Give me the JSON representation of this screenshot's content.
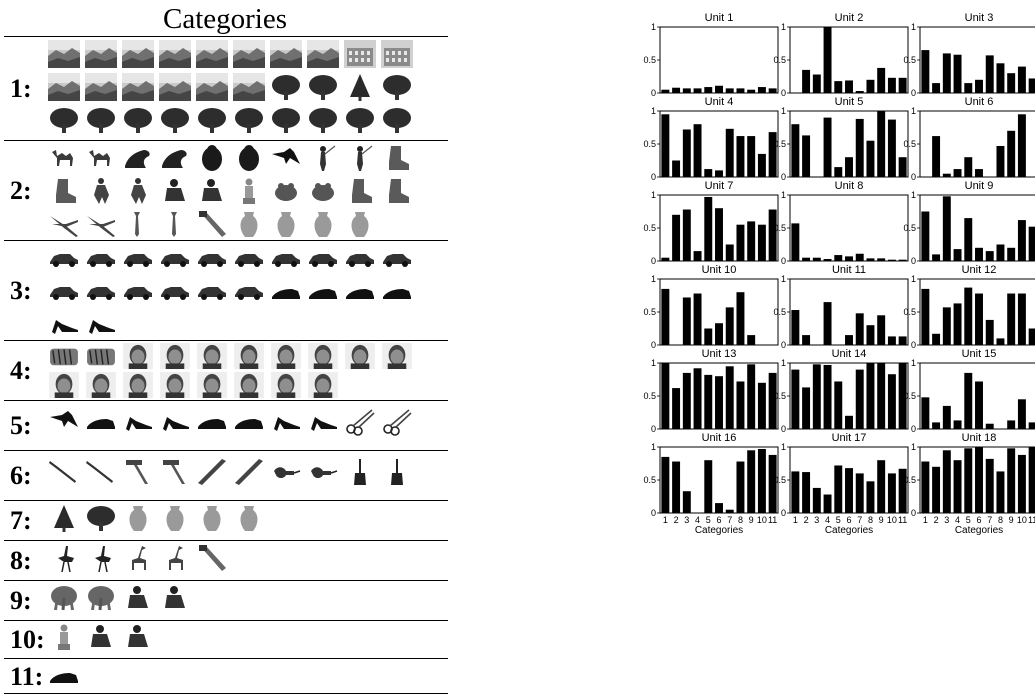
{
  "left_panel": {
    "title": "Categories",
    "categories": [
      {
        "label": "1:",
        "rows": [
          [
            "landscape",
            "landscape",
            "landscape",
            "landscape",
            "landscape",
            "landscape",
            "landscape",
            "landscape",
            "building",
            "building"
          ],
          [
            "landscape",
            "landscape",
            "landscape",
            "landscape",
            "landscape",
            "landscape",
            "tree",
            "tree",
            "conifer",
            "tree"
          ],
          [
            "tree",
            "tree",
            "tree",
            "tree",
            "tree",
            "tree",
            "tree",
            "tree",
            "tree",
            "tree"
          ]
        ]
      },
      {
        "label": "2:",
        "rows": [
          [
            "camel",
            "camel",
            "seal",
            "seal",
            "gorilla",
            "gorilla",
            "bird",
            "golfer",
            "golfer",
            "boot"
          ],
          [
            "boot",
            "dancer",
            "dancer",
            "person",
            "person",
            "statue",
            "frog",
            "frog",
            "boot",
            "boot"
          ],
          [
            "pliers",
            "pliers",
            "wrench",
            "wrench",
            "saw",
            "vase",
            "vase",
            "vase",
            "vase"
          ]
        ]
      },
      {
        "label": "3:",
        "rows": [
          [
            "car",
            "car",
            "car",
            "car",
            "car",
            "car",
            "car",
            "car",
            "car",
            "car"
          ],
          [
            "car",
            "car",
            "car",
            "car",
            "car",
            "car",
            "shoe",
            "shoe",
            "shoe",
            "shoe"
          ],
          [
            "heel",
            "heel"
          ]
        ]
      },
      {
        "label": "4:",
        "rows": [
          [
            "tiger",
            "tiger",
            "face",
            "face",
            "face",
            "face",
            "face",
            "face",
            "face",
            "face"
          ],
          [
            "face",
            "face",
            "face",
            "face",
            "face",
            "face",
            "face",
            "face"
          ]
        ]
      },
      {
        "label": "5:",
        "rows": [
          [
            "bird",
            "shoe",
            "heel",
            "heel",
            "shoe",
            "shoe",
            "heel",
            "heel",
            "scissors",
            "scissors"
          ]
        ]
      },
      {
        "label": "6:",
        "rows": [
          [
            "screwdriver",
            "screwdriver",
            "hammer",
            "hammer",
            "chisel",
            "chisel",
            "drill",
            "drill",
            "brush",
            "brush"
          ]
        ]
      },
      {
        "label": "7:",
        "rows": [
          [
            "conifer",
            "tree",
            "vase",
            "vase",
            "vase",
            "vase"
          ]
        ]
      },
      {
        "label": "8:",
        "rows": [
          [
            "ostrich",
            "ostrich",
            "giraffe",
            "giraffe",
            "saw"
          ]
        ]
      },
      {
        "label": "9:",
        "rows": [
          [
            "elephant",
            "elephant",
            "person",
            "person"
          ]
        ]
      },
      {
        "label": "10:",
        "rows": [
          [
            "statue",
            "person",
            "person"
          ]
        ]
      },
      {
        "label": "11:",
        "rows": [
          [
            "shoe"
          ]
        ]
      }
    ]
  },
  "chart_data": {
    "type": "bar",
    "xlabel": "Categories",
    "categories": [
      "1",
      "2",
      "3",
      "4",
      "5",
      "6",
      "7",
      "8",
      "9",
      "10",
      "11"
    ],
    "ylim": [
      0,
      1
    ],
    "yticks": [
      "0",
      "0.5",
      "1"
    ],
    "units": [
      {
        "name": "Unit 1",
        "values": [
          0.05,
          0.08,
          0.07,
          0.07,
          0.09,
          0.11,
          0.07,
          0.07,
          0.05,
          0.09,
          0.07
        ]
      },
      {
        "name": "Unit 2",
        "values": [
          0.0,
          0.35,
          0.28,
          1.0,
          0.18,
          0.19,
          0.03,
          0.2,
          0.38,
          0.23,
          0.23
        ]
      },
      {
        "name": "Unit 3",
        "values": [
          0.65,
          0.15,
          0.6,
          0.58,
          0.15,
          0.2,
          0.57,
          0.45,
          0.3,
          0.4,
          0.22
        ]
      },
      {
        "name": "Unit 4",
        "values": [
          0.95,
          0.25,
          0.72,
          0.8,
          0.12,
          0.1,
          0.73,
          0.62,
          0.62,
          0.35,
          0.68
        ]
      },
      {
        "name": "Unit 5",
        "values": [
          0.8,
          0.63,
          0.0,
          0.9,
          0.15,
          0.3,
          0.88,
          0.55,
          1.0,
          0.87,
          0.3
        ]
      },
      {
        "name": "Unit 6",
        "values": [
          0.0,
          0.62,
          0.05,
          0.12,
          0.3,
          0.12,
          0.0,
          0.47,
          0.7,
          0.95,
          0.0
        ]
      },
      {
        "name": "Unit 7",
        "values": [
          0.05,
          0.7,
          0.78,
          0.15,
          0.97,
          0.8,
          0.25,
          0.55,
          0.6,
          0.55,
          0.78
        ]
      },
      {
        "name": "Unit 8",
        "values": [
          0.57,
          0.05,
          0.05,
          0.03,
          0.09,
          0.07,
          0.11,
          0.04,
          0.04,
          0.02,
          0.02
        ]
      },
      {
        "name": "Unit 9",
        "values": [
          0.75,
          0.1,
          0.98,
          0.18,
          0.65,
          0.2,
          0.15,
          0.25,
          0.2,
          0.62,
          0.52
        ]
      },
      {
        "name": "Unit 10",
        "values": [
          0.85,
          0.0,
          0.72,
          0.78,
          0.25,
          0.33,
          0.57,
          0.8,
          0.15,
          0.0,
          0.0
        ]
      },
      {
        "name": "Unit 11",
        "values": [
          0.53,
          0.15,
          0.0,
          0.65,
          0.0,
          0.15,
          0.48,
          0.3,
          0.45,
          0.13,
          0.13
        ]
      },
      {
        "name": "Unit 12",
        "values": [
          0.85,
          0.17,
          0.57,
          0.63,
          0.87,
          0.78,
          0.38,
          0.1,
          0.78,
          0.78,
          0.25
        ]
      },
      {
        "name": "Unit 13",
        "values": [
          1.0,
          0.62,
          0.85,
          0.92,
          0.82,
          0.8,
          0.95,
          0.72,
          0.98,
          0.7,
          0.85
        ]
      },
      {
        "name": "Unit 14",
        "values": [
          0.9,
          0.63,
          0.98,
          0.97,
          0.72,
          0.2,
          0.9,
          1.0,
          1.0,
          0.83,
          1.0
        ]
      },
      {
        "name": "Unit 15",
        "values": [
          0.48,
          0.1,
          0.35,
          0.13,
          0.85,
          0.72,
          0.08,
          0.0,
          0.13,
          0.45,
          0.1
        ]
      },
      {
        "name": "Unit 16",
        "values": [
          0.85,
          0.78,
          0.33,
          0.0,
          0.8,
          0.15,
          0.05,
          0.78,
          0.95,
          0.97,
          0.88
        ]
      },
      {
        "name": "Unit 17",
        "values": [
          0.63,
          0.62,
          0.38,
          0.28,
          0.72,
          0.68,
          0.6,
          0.48,
          0.8,
          0.6,
          0.67
        ]
      },
      {
        "name": "Unit 18",
        "values": [
          0.78,
          0.7,
          0.95,
          0.8,
          0.98,
          1.0,
          0.82,
          0.63,
          0.98,
          0.88,
          1.0
        ]
      }
    ]
  }
}
